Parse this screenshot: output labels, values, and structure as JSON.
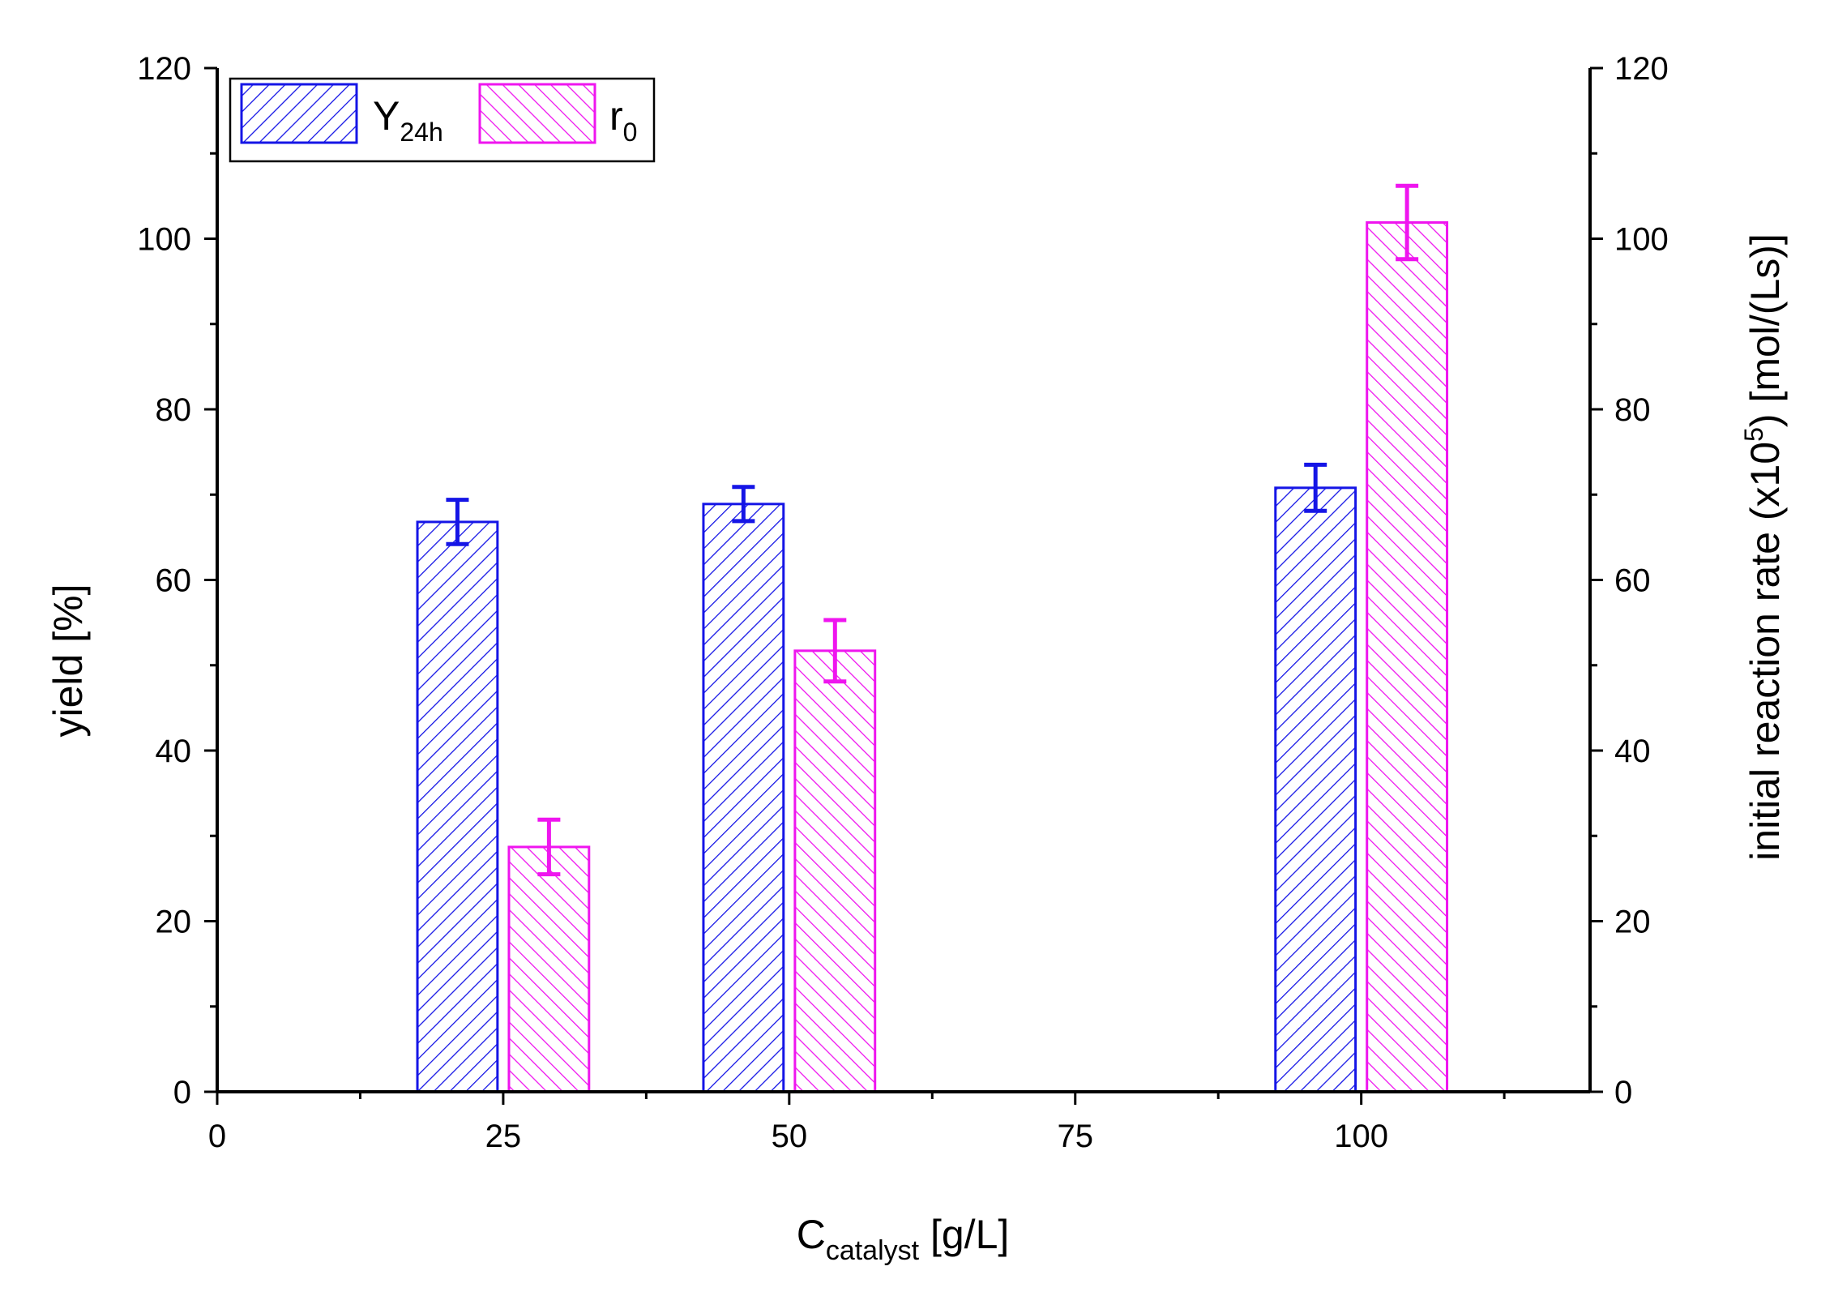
{
  "chart_data": {
    "type": "bar",
    "x_axis": {
      "label_main": "C",
      "label_sub": "catalyst",
      "label_suffix": " [g/L]",
      "lim": [
        0,
        120
      ],
      "major_ticks": [
        0,
        25,
        50,
        75,
        100
      ],
      "tick_labels": [
        "0",
        "25",
        "50",
        "75",
        "100"
      ],
      "minor_ticks": [
        12.5,
        37.5,
        62.5,
        87.5,
        112.5
      ]
    },
    "y_left": {
      "label": "yield [%]",
      "lim": [
        0,
        120
      ],
      "major_ticks": [
        0,
        20,
        40,
        60,
        80,
        100,
        120
      ],
      "tick_labels": [
        "0",
        "20",
        "40",
        "60",
        "80",
        "100",
        "120"
      ],
      "minor_ticks": [
        10,
        30,
        50,
        70,
        90,
        110
      ]
    },
    "y_right": {
      "label_prefix": "initial reaction rate (x10",
      "label_sup": "5",
      "label_suffix": ") [mol/(Ls)]",
      "lim": [
        0,
        120
      ],
      "major_ticks": [
        0,
        20,
        40,
        60,
        80,
        100,
        120
      ],
      "tick_labels": [
        "0",
        "20",
        "40",
        "60",
        "80",
        "100",
        "120"
      ],
      "minor_ticks": [
        10,
        30,
        50,
        70,
        90,
        110
      ]
    },
    "categories": [
      25,
      50,
      100
    ],
    "series": [
      {
        "name": "Y24h",
        "legend_main": "Y",
        "legend_sub": "24h",
        "axis": "left",
        "x": [
          21,
          46,
          96
        ],
        "values": [
          66.8,
          68.9,
          70.8
        ],
        "errors": [
          2.6,
          2.0,
          2.7
        ],
        "hatch": "forward"
      },
      {
        "name": "r0",
        "legend_main": "r",
        "legend_sub": "0",
        "axis": "right",
        "x": [
          29,
          54,
          104
        ],
        "values": [
          28.7,
          51.7,
          101.9
        ],
        "errors": [
          3.2,
          3.6,
          4.3
        ],
        "hatch": "backward"
      }
    ],
    "bar_width": 7,
    "legend_position": "top-left",
    "grid": false
  },
  "colors": {
    "Y24h": "#1515e6",
    "r0": "#ef15ef",
    "axis": "#000000"
  }
}
